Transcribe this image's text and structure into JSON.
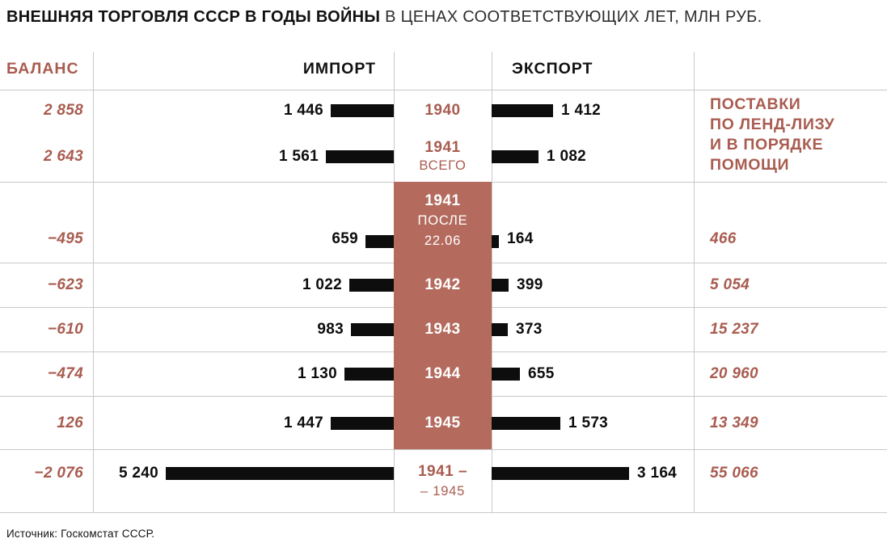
{
  "title": {
    "main": "ВНЕШНЯЯ ТОРГОВЛЯ СССР В ГОДЫ ВОЙНЫ",
    "subtitle": "В ЦЕНАХ СООТВЕТСТВУЮЩИХ ЛЕТ, МЛН РУБ."
  },
  "headers": {
    "balance": "БАЛАНС",
    "import": "ИМПОРТ",
    "export": "ЭКСПОРТ",
    "lend_lease": [
      "ПОСТАВКИ",
      "ПО ЛЕНД-ЛИЗУ",
      "И В ПОРЯДКЕ",
      "ПОМОЩИ"
    ]
  },
  "colors": {
    "accent_text": "#a95c50",
    "accent_block": "#b46b5e",
    "bar": "#0d0d0d",
    "grid": "#c9c9c9"
  },
  "source": "Источник: Госкомстат СССР.",
  "chart_data": {
    "type": "bar",
    "title": "Внешняя торговля СССР в годы войны",
    "unit": "млн руб., в ценах соответствующих лет",
    "x_max": 5240,
    "rows": [
      {
        "year_lines": [
          "1940"
        ],
        "balance": "2 858",
        "import": "1 446",
        "export": "1 412",
        "lend_lease": null,
        "section": "prewar"
      },
      {
        "year_lines": [
          "1941",
          "ВСЕГО"
        ],
        "balance": "2 643",
        "import": "1 561",
        "export": "1 082",
        "lend_lease": null,
        "section": "prewar"
      },
      {
        "year_lines": [
          "1941",
          "ПОСЛЕ",
          "22.06"
        ],
        "balance": "−495",
        "import": "659",
        "export": "164",
        "lend_lease": "466",
        "section": "war"
      },
      {
        "year_lines": [
          "1942"
        ],
        "balance": "−623",
        "import": "1 022",
        "export": "399",
        "lend_lease": "5 054",
        "section": "war"
      },
      {
        "year_lines": [
          "1943"
        ],
        "balance": "−610",
        "import": "983",
        "export": "373",
        "lend_lease": "15 237",
        "section": "war"
      },
      {
        "year_lines": [
          "1944"
        ],
        "balance": "−474",
        "import": "1 130",
        "export": "655",
        "lend_lease": "20 960",
        "section": "war"
      },
      {
        "year_lines": [
          "1945"
        ],
        "balance": "126",
        "import": "1 447",
        "export": "1 573",
        "lend_lease": "13 349",
        "section": "war"
      },
      {
        "year_lines": [
          "1941 –",
          "– 1945"
        ],
        "balance": "−2 076",
        "import": "5 240",
        "export": "3 164",
        "lend_lease": "55 066",
        "section": "total"
      }
    ],
    "numeric": {
      "years": [
        "1940",
        "1941 всего",
        "1941 после 22.06",
        "1942",
        "1943",
        "1944",
        "1945",
        "1941–1945"
      ],
      "balance": [
        2858,
        2643,
        -495,
        -623,
        -610,
        -474,
        126,
        -2076
      ],
      "import": [
        1446,
        1561,
        659,
        1022,
        983,
        1130,
        1447,
        5240
      ],
      "export": [
        1412,
        1082,
        164,
        399,
        373,
        655,
        1573,
        3164
      ],
      "lend_lease": [
        null,
        null,
        466,
        5054,
        15237,
        20960,
        13349,
        55066
      ]
    }
  }
}
